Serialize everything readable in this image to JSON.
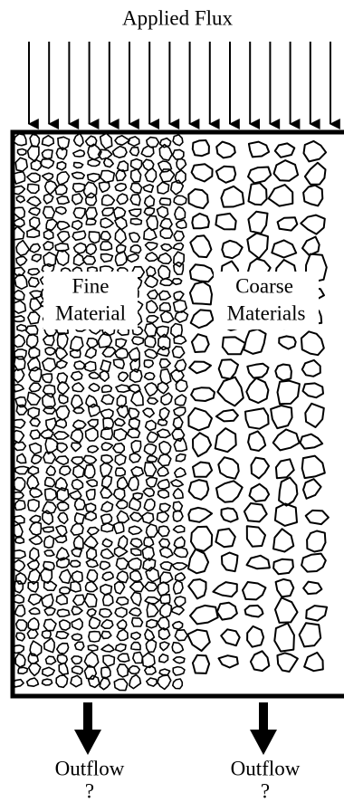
{
  "title": "Applied Flux",
  "regions": [
    {
      "lines": [
        "Fine",
        "Material"
      ]
    },
    {
      "lines": [
        "Coarse",
        "Materials"
      ]
    }
  ],
  "outflows": [
    {
      "label": "Outflow",
      "note": "?"
    },
    {
      "label": "Outflow",
      "note": "?"
    }
  ]
}
